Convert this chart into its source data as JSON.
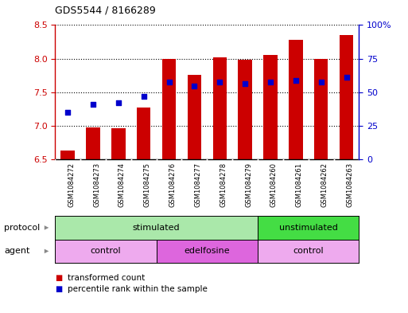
{
  "title": "GDS5544 / 8166289",
  "samples": [
    "GSM1084272",
    "GSM1084273",
    "GSM1084274",
    "GSM1084275",
    "GSM1084276",
    "GSM1084277",
    "GSM1084278",
    "GSM1084279",
    "GSM1084260",
    "GSM1084261",
    "GSM1084262",
    "GSM1084263"
  ],
  "bar_values": [
    6.63,
    6.98,
    6.97,
    7.27,
    8.0,
    7.76,
    8.02,
    7.98,
    8.06,
    8.28,
    8.0,
    8.35
  ],
  "percentile_values": [
    7.2,
    7.32,
    7.35,
    7.44,
    7.65,
    7.59,
    7.65,
    7.63,
    7.65,
    7.68,
    7.65,
    7.72
  ],
  "ylim": [
    6.5,
    8.5
  ],
  "y_ticks_left": [
    6.5,
    7.0,
    7.5,
    8.0,
    8.5
  ],
  "right_y_ticks_pct": [
    0,
    25,
    50,
    75,
    100
  ],
  "bar_color": "#cc0000",
  "percentile_color": "#0000cc",
  "bar_bottom": 6.5,
  "protocol_labels": [
    {
      "label": "stimulated",
      "start": 0,
      "end": 8,
      "color": "#aae8aa"
    },
    {
      "label": "unstimulated",
      "start": 8,
      "end": 12,
      "color": "#44dd44"
    }
  ],
  "agent_labels": [
    {
      "label": "control",
      "start": 0,
      "end": 4,
      "color": "#eeaaee"
    },
    {
      "label": "edelfosine",
      "start": 4,
      "end": 8,
      "color": "#dd66dd"
    },
    {
      "label": "control",
      "start": 8,
      "end": 12,
      "color": "#eeaaee"
    }
  ],
  "legend_bar_color": "#cc0000",
  "legend_percentile_color": "#0000cc",
  "legend_bar_label": "transformed count",
  "legend_percentile_label": "percentile rank within the sample",
  "protocol_row_label": "protocol",
  "agent_row_label": "agent",
  "left_axis_color": "#cc0000",
  "right_axis_color": "#0000cc",
  "xlabel_bg_color": "#cccccc",
  "fig_width": 5.13,
  "fig_height": 3.93,
  "dpi": 100
}
